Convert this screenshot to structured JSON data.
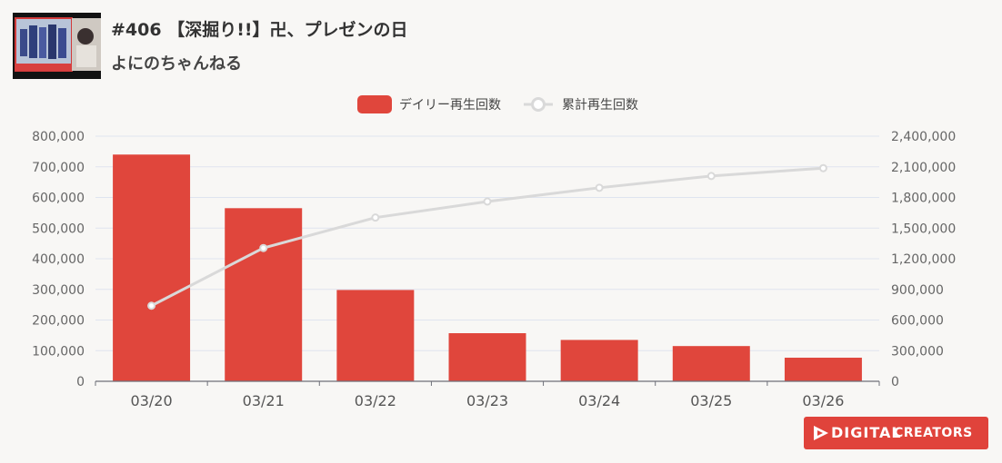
{
  "video": {
    "title": "#406 【深掘り!!】卍、プレゼンの日",
    "channel": "よにのちゃんねる"
  },
  "logo": {
    "brand_left": "DIGITAL",
    "brand_right": "CREATORS",
    "color": "#e0433b"
  },
  "colors": {
    "bar": "#e0463c",
    "line": "#d9d9d9",
    "grid": "#dfe4ef",
    "axis_text": "#666666"
  },
  "chart_data": {
    "type": "bar",
    "categories": [
      "03/20",
      "03/21",
      "03/22",
      "03/23",
      "03/24",
      "03/25",
      "03/26"
    ],
    "series": [
      {
        "name": "デイリー再生回数",
        "type": "bar",
        "axis": "left",
        "values": [
          740000,
          565000,
          298000,
          157000,
          135000,
          115000,
          77000
        ]
      },
      {
        "name": "累計再生回数",
        "type": "line",
        "axis": "right",
        "values": [
          740000,
          1305000,
          1603000,
          1760000,
          1895000,
          2010000,
          2087000
        ]
      }
    ],
    "y_left": {
      "ylim": [
        0,
        800000
      ],
      "ticks": [
        "0",
        "100,000",
        "200,000",
        "300,000",
        "400,000",
        "500,000",
        "600,000",
        "700,000",
        "800,000"
      ]
    },
    "y_right": {
      "ylim": [
        0,
        2400000
      ],
      "ticks": [
        "0",
        "300,000",
        "600,000",
        "900,000",
        "1,200,000",
        "1,500,000",
        "1,800,000",
        "2,100,000",
        "2,400,000"
      ]
    },
    "grid": true,
    "legend_position": "top-center"
  }
}
